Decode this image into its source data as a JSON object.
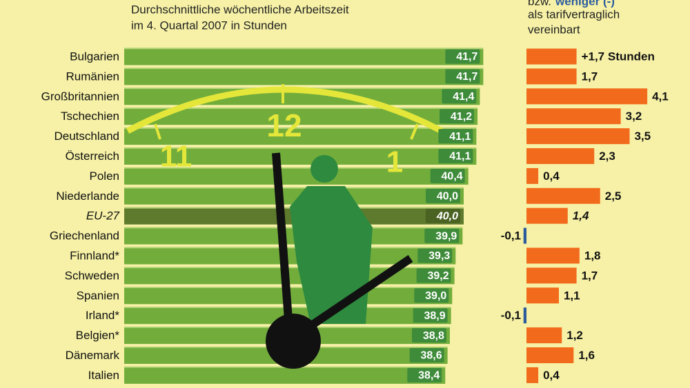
{
  "chart_data": [
    {
      "type": "bar",
      "title_lines": [
        "Durchschnittliche wöchentliche Arbeitszeit",
        "im 4. Quartal 2007 in Stunden"
      ],
      "categories": [
        "Bulgarien",
        "Rumänien",
        "Großbritannien",
        "Tschechien",
        "Deutschland",
        "Österreich",
        "Polen",
        "Niederlande",
        "EU-27",
        "Griechenland",
        "Finnland*",
        "Schweden",
        "Spanien",
        "Irland*",
        "Belgien*",
        "Dänemark",
        "Italien"
      ],
      "values": [
        41.7,
        41.7,
        41.4,
        41.2,
        41.1,
        41.1,
        40.4,
        40.0,
        40.0,
        39.9,
        39.3,
        39.2,
        39.0,
        38.9,
        38.8,
        38.6,
        38.4
      ],
      "value_labels": [
        "41,7",
        "41,7",
        "41,4",
        "41,2",
        "41,1",
        "41,1",
        "40,4",
        "40,0",
        "40,0",
        "39,9",
        "39,3",
        "39,2",
        "39,0",
        "38,9",
        "38,8",
        "38,6",
        "38,4"
      ],
      "color": "#72ad3c",
      "highlight_index": 8,
      "highlight_color": "#5e7a2c",
      "clock_numbers": [
        "11",
        "12",
        "1"
      ]
    },
    {
      "type": "bar",
      "title_lines": [
        "bzw.",
        "weniger (-)",
        "als tarifvertraglich",
        "vereinbart"
      ],
      "values": [
        1.7,
        1.7,
        4.1,
        3.2,
        3.5,
        2.3,
        0.4,
        2.5,
        1.4,
        -0.1,
        1.8,
        1.7,
        1.1,
        -0.1,
        1.2,
        1.6,
        0.4
      ],
      "value_labels": [
        "+1,7 Stunden",
        "1,7",
        "4,1",
        "3,2",
        "3,5",
        "2,3",
        "0,4",
        "2,5",
        "1,4",
        "-0,1",
        "1,8",
        "1,7",
        "1,1",
        "-0,1",
        "1,2",
        "1,6",
        "0,4"
      ],
      "color": "#f26b1d",
      "negative_color": "#2c5c9e"
    }
  ]
}
